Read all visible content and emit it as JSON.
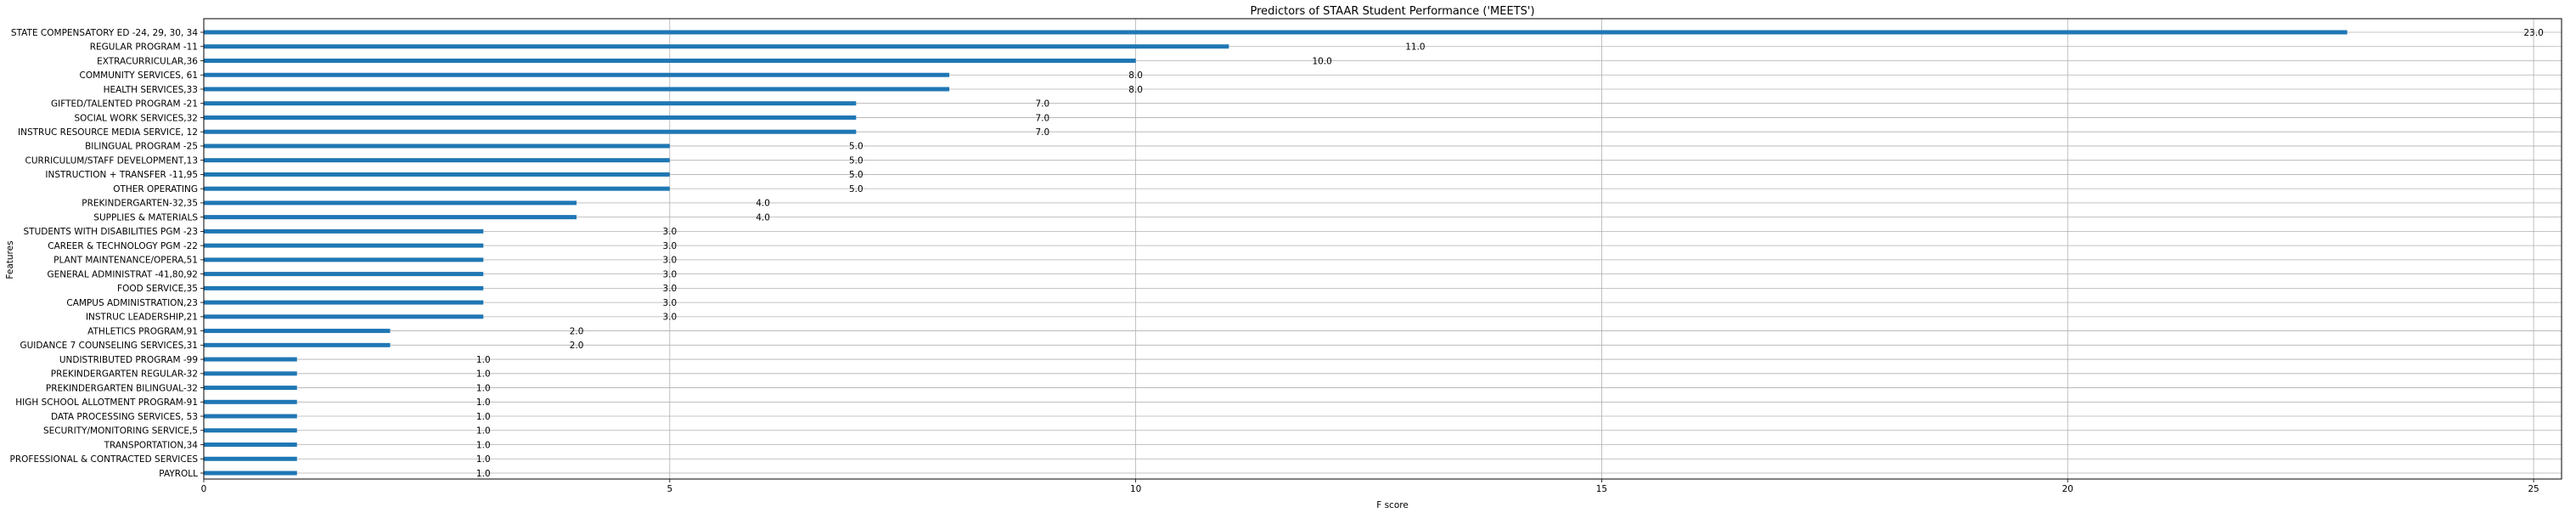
{
  "chart_data": {
    "type": "bar",
    "orientation": "horizontal",
    "title": "Predictors of STAAR Student Performance ('MEETS')",
    "xlabel": "F score",
    "ylabel": "Features",
    "xlim": [
      0,
      25.3
    ],
    "xticks": [
      0,
      5,
      10,
      15,
      20,
      25
    ],
    "grid": true,
    "categories": [
      "STATE COMPENSATORY ED -24, 29, 30, 34",
      "REGULAR PROGRAM -11",
      "EXTRACURRICULAR,36",
      "COMMUNITY SERVICES, 61",
      "HEALTH SERVICES,33",
      "GIFTED/TALENTED PROGRAM -21",
      "SOCIAL WORK SERVICES,32",
      "INSTRUC RESOURCE MEDIA SERVICE, 12",
      "BILINGUAL PROGRAM -25",
      "CURRICULUM/STAFF DEVELOPMENT,13",
      "INSTRUCTION + TRANSFER -11,95",
      "OTHER OPERATING",
      "PREKINDERGARTEN-32,35",
      "SUPPLIES & MATERIALS",
      "STUDENTS WITH DISABILITIES PGM -23",
      "CAREER & TECHNOLOGY PGM -22",
      "PLANT MAINTENANCE/OPERA,51",
      "GENERAL ADMINISTRAT -41,80,92",
      "FOOD SERVICE,35",
      "CAMPUS ADMINISTRATION,23",
      "INSTRUC LEADERSHIP,21",
      "ATHLETICS PROGRAM,91",
      "GUIDANCE 7 COUNSELING SERVICES,31",
      "UNDISTRIBUTED PROGRAM -99",
      "PREKINDERGARTEN  REGULAR-32",
      "PREKINDERGARTEN  BILINGUAL-32",
      "HIGH SCHOOL ALLOTMENT PROGRAM-91",
      "DATA PROCESSING SERVICES, 53",
      "SECURITY/MONITORING SERVICE,5",
      "TRANSPORTATION,34",
      "PROFESSIONAL & CONTRACTED SERVICES",
      "PAYROLL"
    ],
    "values": [
      23,
      11,
      10,
      8,
      8,
      7,
      7,
      7,
      5,
      5,
      5,
      5,
      4,
      4,
      3,
      3,
      3,
      3,
      3,
      3,
      3,
      2,
      2,
      1,
      1,
      1,
      1,
      1,
      1,
      1,
      1,
      1
    ],
    "value_labels": [
      "23.0",
      "11.0",
      "10.0",
      "8.0",
      "8.0",
      "7.0",
      "7.0",
      "7.0",
      "5.0",
      "5.0",
      "5.0",
      "5.0",
      "4.0",
      "4.0",
      "3.0",
      "3.0",
      "3.0",
      "3.0",
      "3.0",
      "3.0",
      "3.0",
      "2.0",
      "2.0",
      "1.0",
      "1.0",
      "1.0",
      "1.0",
      "1.0",
      "1.0",
      "1.0",
      "1.0",
      "1.0"
    ],
    "bar_color": "#1f77b4"
  }
}
